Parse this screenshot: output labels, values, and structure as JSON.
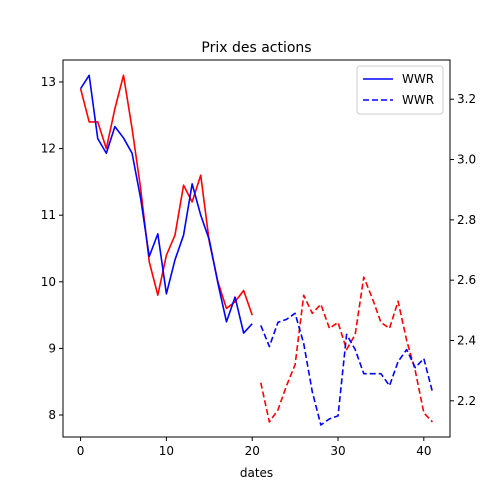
{
  "chart_data": {
    "type": "line",
    "title": "Prix des actions",
    "xlabel": "dates",
    "ylabel": "",
    "xlim": [
      -2.05,
      43.05
    ],
    "ylim_left": [
      7.67,
      13.33
    ],
    "ylim_right": [
      2.08,
      3.33
    ],
    "x_ticks": [
      0,
      10,
      20,
      30,
      40
    ],
    "y_ticks_left": [
      8,
      9,
      10,
      11,
      12,
      13
    ],
    "y_ticks_right": [
      2.2,
      2.4,
      2.6,
      2.8,
      3.0,
      3.2
    ],
    "grid": false,
    "legend": {
      "placement": "top-right",
      "entries": [
        {
          "label": "WWR",
          "color": "#0000ff",
          "dash": "solid"
        },
        {
          "label": "WWR",
          "color": "#0000ff",
          "dash": "dashed"
        }
      ]
    },
    "series": [
      {
        "axis": "left",
        "color": "#ff0000",
        "dash": "solid",
        "x": [
          0,
          1,
          2,
          3,
          4,
          5,
          6,
          7,
          8,
          9,
          10,
          11,
          12,
          13,
          14,
          15,
          16,
          17,
          18,
          19,
          20
        ],
        "values": [
          12.9,
          12.4,
          12.4,
          12.0,
          12.6,
          13.1,
          12.3,
          11.4,
          10.3,
          9.8,
          10.4,
          10.7,
          11.45,
          11.2,
          11.6,
          10.6,
          10.0,
          9.6,
          9.7,
          9.87,
          9.5
        ]
      },
      {
        "axis": "left",
        "color": "#0000ff",
        "dash": "solid",
        "x": [
          0,
          1,
          2,
          3,
          4,
          5,
          6,
          7,
          8,
          9,
          10,
          11,
          12,
          13,
          14,
          15,
          16,
          17,
          18,
          19,
          20
        ],
        "values": [
          12.9,
          13.1,
          12.15,
          11.93,
          12.33,
          12.16,
          11.93,
          11.25,
          10.38,
          10.72,
          9.82,
          10.33,
          10.7,
          11.47,
          11.0,
          10.63,
          9.98,
          9.4,
          9.77,
          9.23,
          9.37
        ]
      },
      {
        "axis": "right",
        "color": "#ff0000",
        "dash": "dashed",
        "x": [
          21,
          22,
          23,
          24,
          25,
          26,
          27,
          28,
          29,
          30,
          31,
          32,
          33,
          34,
          35,
          36,
          37,
          38,
          39,
          40,
          41
        ],
        "values": [
          2.26,
          2.13,
          2.17,
          2.25,
          2.32,
          2.55,
          2.49,
          2.52,
          2.44,
          2.46,
          2.37,
          2.42,
          2.61,
          2.54,
          2.46,
          2.44,
          2.53,
          2.4,
          2.3,
          2.16,
          2.13
        ]
      },
      {
        "axis": "right",
        "color": "#0000ff",
        "dash": "dashed",
        "x": [
          21,
          22,
          23,
          24,
          25,
          26,
          27,
          28,
          29,
          30,
          31,
          32,
          33,
          34,
          35,
          36,
          37,
          38,
          39,
          40,
          41
        ],
        "values": [
          2.45,
          2.38,
          2.46,
          2.47,
          2.49,
          2.39,
          2.23,
          2.12,
          2.14,
          2.15,
          2.42,
          2.37,
          2.29,
          2.29,
          2.29,
          2.25,
          2.33,
          2.37,
          2.31,
          2.34,
          2.23
        ]
      }
    ]
  }
}
